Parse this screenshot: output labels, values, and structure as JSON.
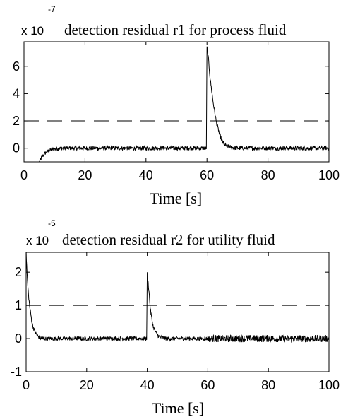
{
  "chart_data": [
    {
      "type": "line",
      "title": "detection residual r1 for process fluid",
      "xlabel": "Time [s]",
      "ylabel": "",
      "multiplier": {
        "base": "x 10",
        "exponent": "-7"
      },
      "xlim": [
        0,
        100
      ],
      "ylim": [
        -1,
        7.8
      ],
      "xticks": [
        0,
        20,
        40,
        60,
        80,
        100
      ],
      "yticks": [
        0,
        2,
        4,
        6
      ],
      "grid": false,
      "threshold": {
        "value": 2,
        "style": "dashed"
      },
      "series": [
        {
          "x": [
            5,
            6,
            7,
            8,
            9,
            10,
            12,
            15,
            20,
            30,
            40,
            50,
            59.8,
            60,
            60.5,
            61,
            62,
            63,
            64,
            65,
            66,
            68,
            70,
            80,
            90,
            100
          ],
          "values": [
            -1.0,
            -0.6,
            -0.35,
            -0.2,
            -0.1,
            -0.05,
            0.0,
            0.0,
            0.0,
            0.0,
            0.0,
            0.0,
            0.0,
            7.4,
            6.5,
            5.2,
            3.4,
            2.0,
            1.1,
            0.5,
            0.2,
            0.05,
            0.0,
            0.0,
            0.0,
            0.0
          ],
          "noise": 0.15
        }
      ]
    },
    {
      "type": "line",
      "title": "detection residual r2 for utility fluid",
      "xlabel": "Time [s]",
      "ylabel": "",
      "multiplier": {
        "base": "x 10",
        "exponent": "-5"
      },
      "xlim": [
        0,
        100
      ],
      "ylim": [
        -1,
        2.6
      ],
      "xticks": [
        0,
        20,
        40,
        60,
        80,
        100
      ],
      "yticks": [
        -1,
        0,
        1,
        2
      ],
      "grid": false,
      "threshold": {
        "value": 1,
        "style": "dashed"
      },
      "series": [
        {
          "x": [
            0,
            0.4,
            0.8,
            1.2,
            1.6,
            2,
            2.5,
            3,
            4,
            5,
            10,
            20,
            30,
            39.8,
            40,
            40.6,
            41,
            41.5,
            42,
            43,
            44,
            46,
            50,
            60,
            70,
            80,
            90,
            100
          ],
          "values": [
            2.6,
            1.8,
            1.3,
            0.95,
            0.7,
            0.45,
            0.3,
            0.18,
            0.06,
            0.0,
            0.0,
            0.0,
            0.0,
            0.0,
            1.95,
            1.4,
            0.9,
            0.6,
            0.35,
            0.15,
            0.05,
            0.0,
            0.0,
            0.0,
            0.0,
            0.0,
            0.0,
            0.0
          ],
          "noise": 0.06
        }
      ]
    }
  ]
}
